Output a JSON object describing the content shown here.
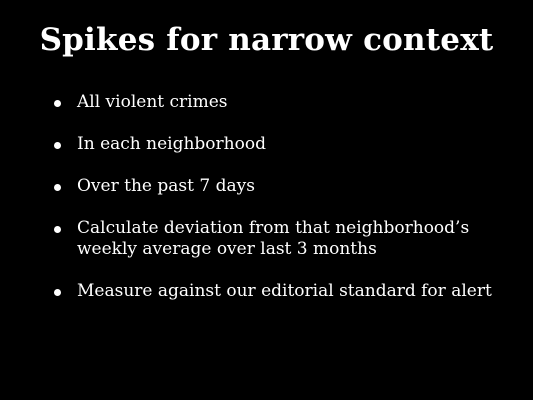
{
  "slide": {
    "title": "Spikes for narrow context",
    "bullets": [
      {
        "lines": [
          "All violent crimes"
        ]
      },
      {
        "lines": [
          "In each neighborhood"
        ]
      },
      {
        "lines": [
          "Over the past 7 days"
        ]
      },
      {
        "lines": [
          "Calculate deviation from that neighborhood’s",
          "weekly average over last 3 months"
        ]
      },
      {
        "lines": [
          "Measure against our editorial standard for alert"
        ]
      }
    ]
  }
}
